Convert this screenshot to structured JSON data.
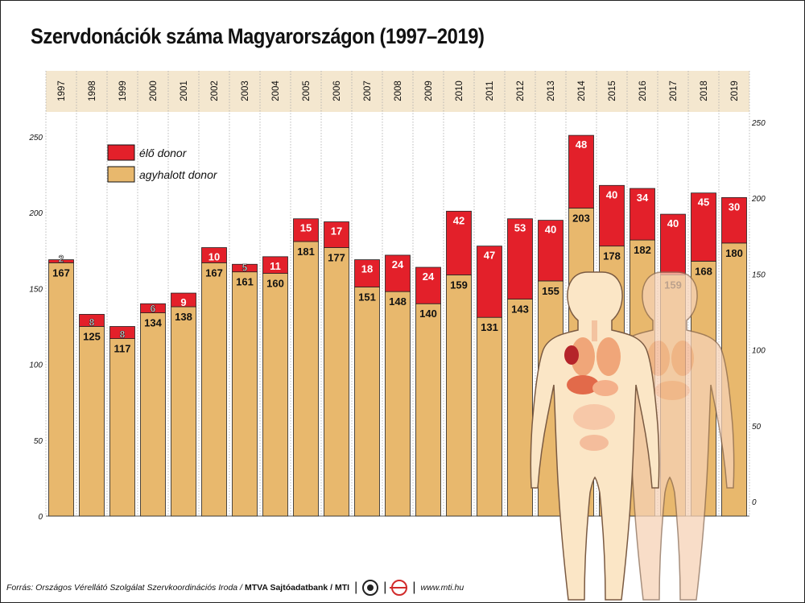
{
  "title": "Szervdonációk száma Magyarországon (1997–2019)",
  "legend": {
    "living": "élő donor",
    "braindead": "agyhalott donor"
  },
  "colors": {
    "living": "#e3202a",
    "braindead": "#e8b86d",
    "year_band": "#f4e7cf",
    "grid": "#aaaaaa"
  },
  "footer": {
    "source": "Forrás: Országos Vérellátó Szolgálat Szervkoordinációs Iroda /",
    "org": "MTVA Sajtóadatbank / MTI",
    "logo_left": "mtva-logo",
    "logo_right": "mti-logo",
    "url": "www.mti.hu"
  },
  "chart_data": {
    "type": "bar",
    "stacked": true,
    "categories": [
      "1997",
      "1998",
      "1999",
      "2000",
      "2001",
      "2002",
      "2003",
      "2004",
      "2005",
      "2006",
      "2007",
      "2008",
      "2009",
      "2010",
      "2011",
      "2012",
      "2013",
      "2014",
      "2015",
      "2016",
      "2017",
      "2018",
      "2019"
    ],
    "series": [
      {
        "name": "agyhalott donor",
        "values": [
          167,
          125,
          117,
          134,
          138,
          167,
          161,
          160,
          181,
          177,
          151,
          148,
          140,
          159,
          131,
          143,
          155,
          203,
          178,
          182,
          159,
          168,
          180
        ]
      },
      {
        "name": "élő donor",
        "values": [
          2,
          8,
          8,
          6,
          9,
          10,
          5,
          11,
          15,
          17,
          18,
          24,
          24,
          42,
          47,
          53,
          40,
          48,
          40,
          34,
          40,
          45,
          30
        ]
      }
    ],
    "y_ticks": [
      "0",
      "50",
      "100",
      "150",
      "200",
      "250"
    ],
    "ylim": [
      0,
      250
    ],
    "grid": true,
    "legend_position": "top-left",
    "illustration": "human-body-organs"
  }
}
